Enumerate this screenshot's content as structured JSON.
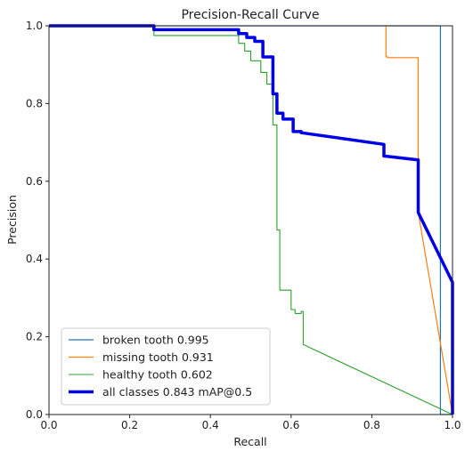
{
  "chart_data": {
    "type": "line",
    "title": "Precision-Recall Curve",
    "xlabel": "Recall",
    "ylabel": "Precision",
    "xlim": [
      0,
      1
    ],
    "ylim": [
      0,
      1
    ],
    "xticks": [
      "0.0",
      "0.2",
      "0.4",
      "0.6",
      "0.8",
      "1.0"
    ],
    "yticks": [
      "0.0",
      "0.2",
      "0.4",
      "0.6",
      "0.8",
      "1.0"
    ],
    "grid": false,
    "legend_position": "lower-left",
    "series": [
      {
        "name": "broken tooth 0.995",
        "color": "#1f77b4",
        "width": 1.2,
        "x": [
          0,
          0.97,
          0.97,
          1.0
        ],
        "y": [
          1.0,
          1.0,
          0.0,
          0.0
        ]
      },
      {
        "name": "missing tooth 0.931",
        "color": "#ff7f0e",
        "width": 1.2,
        "x": [
          0.835,
          0.835,
          0.84,
          0.84,
          0.915,
          0.915,
          1.0
        ],
        "y": [
          1.0,
          0.92,
          0.92,
          0.918,
          0.918,
          0.52,
          0.0
        ]
      },
      {
        "name": "healthy tooth 0.602",
        "color": "#2ca02c",
        "width": 1.1,
        "x": [
          0,
          0.26,
          0.26,
          0.47,
          0.47,
          0.485,
          0.485,
          0.5,
          0.5,
          0.525,
          0.525,
          0.54,
          0.54,
          0.555,
          0.555,
          0.565,
          0.565,
          0.572,
          0.572,
          0.6,
          0.6,
          0.61,
          0.61,
          0.625,
          0.625,
          0.63,
          0.63,
          1.0
        ],
        "y": [
          1.0,
          1.0,
          0.975,
          0.975,
          0.955,
          0.955,
          0.935,
          0.935,
          0.91,
          0.91,
          0.88,
          0.88,
          0.85,
          0.85,
          0.745,
          0.745,
          0.475,
          0.475,
          0.32,
          0.32,
          0.27,
          0.27,
          0.26,
          0.26,
          0.265,
          0.265,
          0.18,
          0.0
        ]
      },
      {
        "name": "all classes 0.843 mAP@0.5",
        "color": "#0000e6",
        "width": 3.5,
        "x": [
          0,
          0.26,
          0.26,
          0.47,
          0.47,
          0.49,
          0.49,
          0.51,
          0.51,
          0.53,
          0.53,
          0.555,
          0.555,
          0.565,
          0.565,
          0.58,
          0.58,
          0.605,
          0.605,
          0.625,
          0.625,
          0.83,
          0.83,
          0.915,
          0.915,
          1.0,
          1.0
        ],
        "y": [
          1.0,
          1.0,
          0.99,
          0.99,
          0.98,
          0.98,
          0.97,
          0.97,
          0.96,
          0.96,
          0.92,
          0.92,
          0.825,
          0.825,
          0.775,
          0.775,
          0.76,
          0.76,
          0.728,
          0.728,
          0.725,
          0.695,
          0.665,
          0.655,
          0.52,
          0.34,
          0.0
        ]
      }
    ]
  }
}
